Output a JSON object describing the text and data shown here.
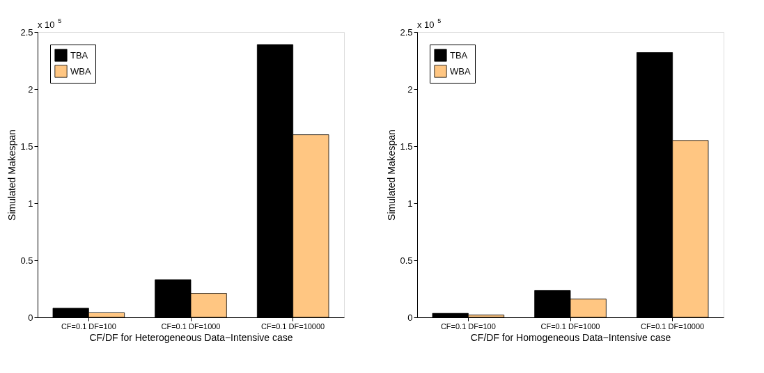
{
  "chart_data": [
    {
      "type": "bar",
      "xlabel": "CF/DF for Heterogeneous Data−Intensive case",
      "ylabel": "Simulated Makespan",
      "categories": [
        "CF=0.1 DF=100",
        "CF=0.1 DF=1000",
        "CF=0.1 DF=10000"
      ],
      "series": [
        {
          "name": "TBA",
          "color": "#000000",
          "values": [
            0.08,
            0.33,
            2.39
          ]
        },
        {
          "name": "WBA",
          "color": "#ffc682",
          "values": [
            0.04,
            0.21,
            1.6
          ]
        }
      ],
      "ylim": [
        0,
        2.5
      ],
      "yticks": [
        0,
        0.5,
        1,
        1.5,
        2,
        2.5
      ],
      "legend": "top left",
      "grid": false,
      "annotations": [
        "x 10$^{5}$"
      ]
    },
    {
      "type": "bar",
      "xlabel": "CF/DF for Homogeneous Data−Intensive case",
      "ylabel": "Simulated Makespan",
      "categories": [
        "CF=0.1 DF=100",
        "CF=0.1 DF=1000",
        "CF=0.1 DF=10000"
      ],
      "series": [
        {
          "name": "TBA",
          "color": "#000000",
          "values": [
            0.035,
            0.235,
            2.32
          ]
        },
        {
          "name": "WBA",
          "color": "#ffc682",
          "values": [
            0.02,
            0.16,
            1.55
          ]
        }
      ],
      "ylim": [
        0,
        2.5
      ],
      "yticks": [
        0,
        0.5,
        1,
        1.5,
        2,
        2.5
      ],
      "legend": "top left",
      "grid": false,
      "annotations": [
        "x 10$^{5}$"
      ]
    }
  ]
}
